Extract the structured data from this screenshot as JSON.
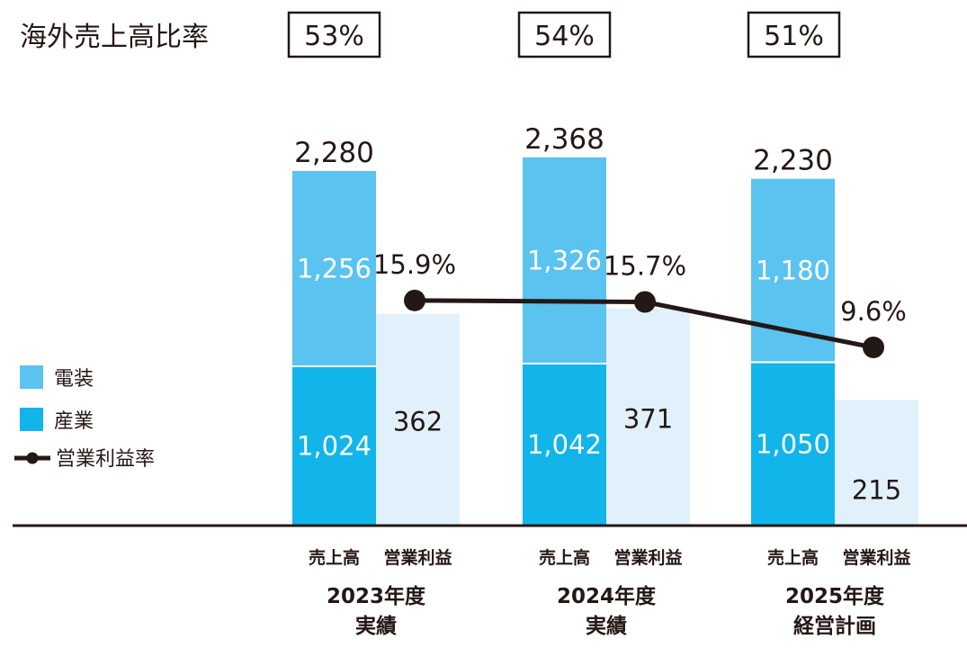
{
  "chart_data": {
    "type": "bar",
    "categories": [
      {
        "line1": "2023年度",
        "line2": "実績"
      },
      {
        "line1": "2024年度",
        "line2": "実績"
      },
      {
        "line1": "2025年度",
        "line2": "経営計画"
      }
    ],
    "bar_labels": {
      "sales": "売上高",
      "profit": "営業利益"
    },
    "overseas_label": "海外売上高比率",
    "overseas_ratio": [
      "53%",
      "54%",
      "51%"
    ],
    "series": [
      {
        "name": "電装",
        "values": [
          1256,
          1326,
          1180
        ],
        "labels": [
          "1,256",
          "1,326",
          "1,180"
        ],
        "color": "#5bc3f0"
      },
      {
        "name": "産業",
        "values": [
          1024,
          1042,
          1050
        ],
        "labels": [
          "1,024",
          "1,042",
          "1,050"
        ],
        "color": "#12b5ea"
      }
    ],
    "sales_total": {
      "values": [
        2280,
        2368,
        2230
      ],
      "labels": [
        "2,280",
        "2,368",
        "2,230"
      ]
    },
    "operating_profit": {
      "values": [
        362,
        371,
        215
      ],
      "labels": [
        "362",
        "371",
        "215"
      ],
      "color": "#e1f1fb"
    },
    "profit_margin": {
      "name": "営業利益率",
      "values": [
        15.9,
        15.7,
        9.6
      ],
      "labels": [
        "15.9%",
        "15.7%",
        "9.6%"
      ],
      "color": "#231815"
    },
    "ylim": [
      0,
      2640
    ],
    "margin_ylim": [
      0,
      30
    ],
    "legend_position": "left",
    "grid": false
  }
}
